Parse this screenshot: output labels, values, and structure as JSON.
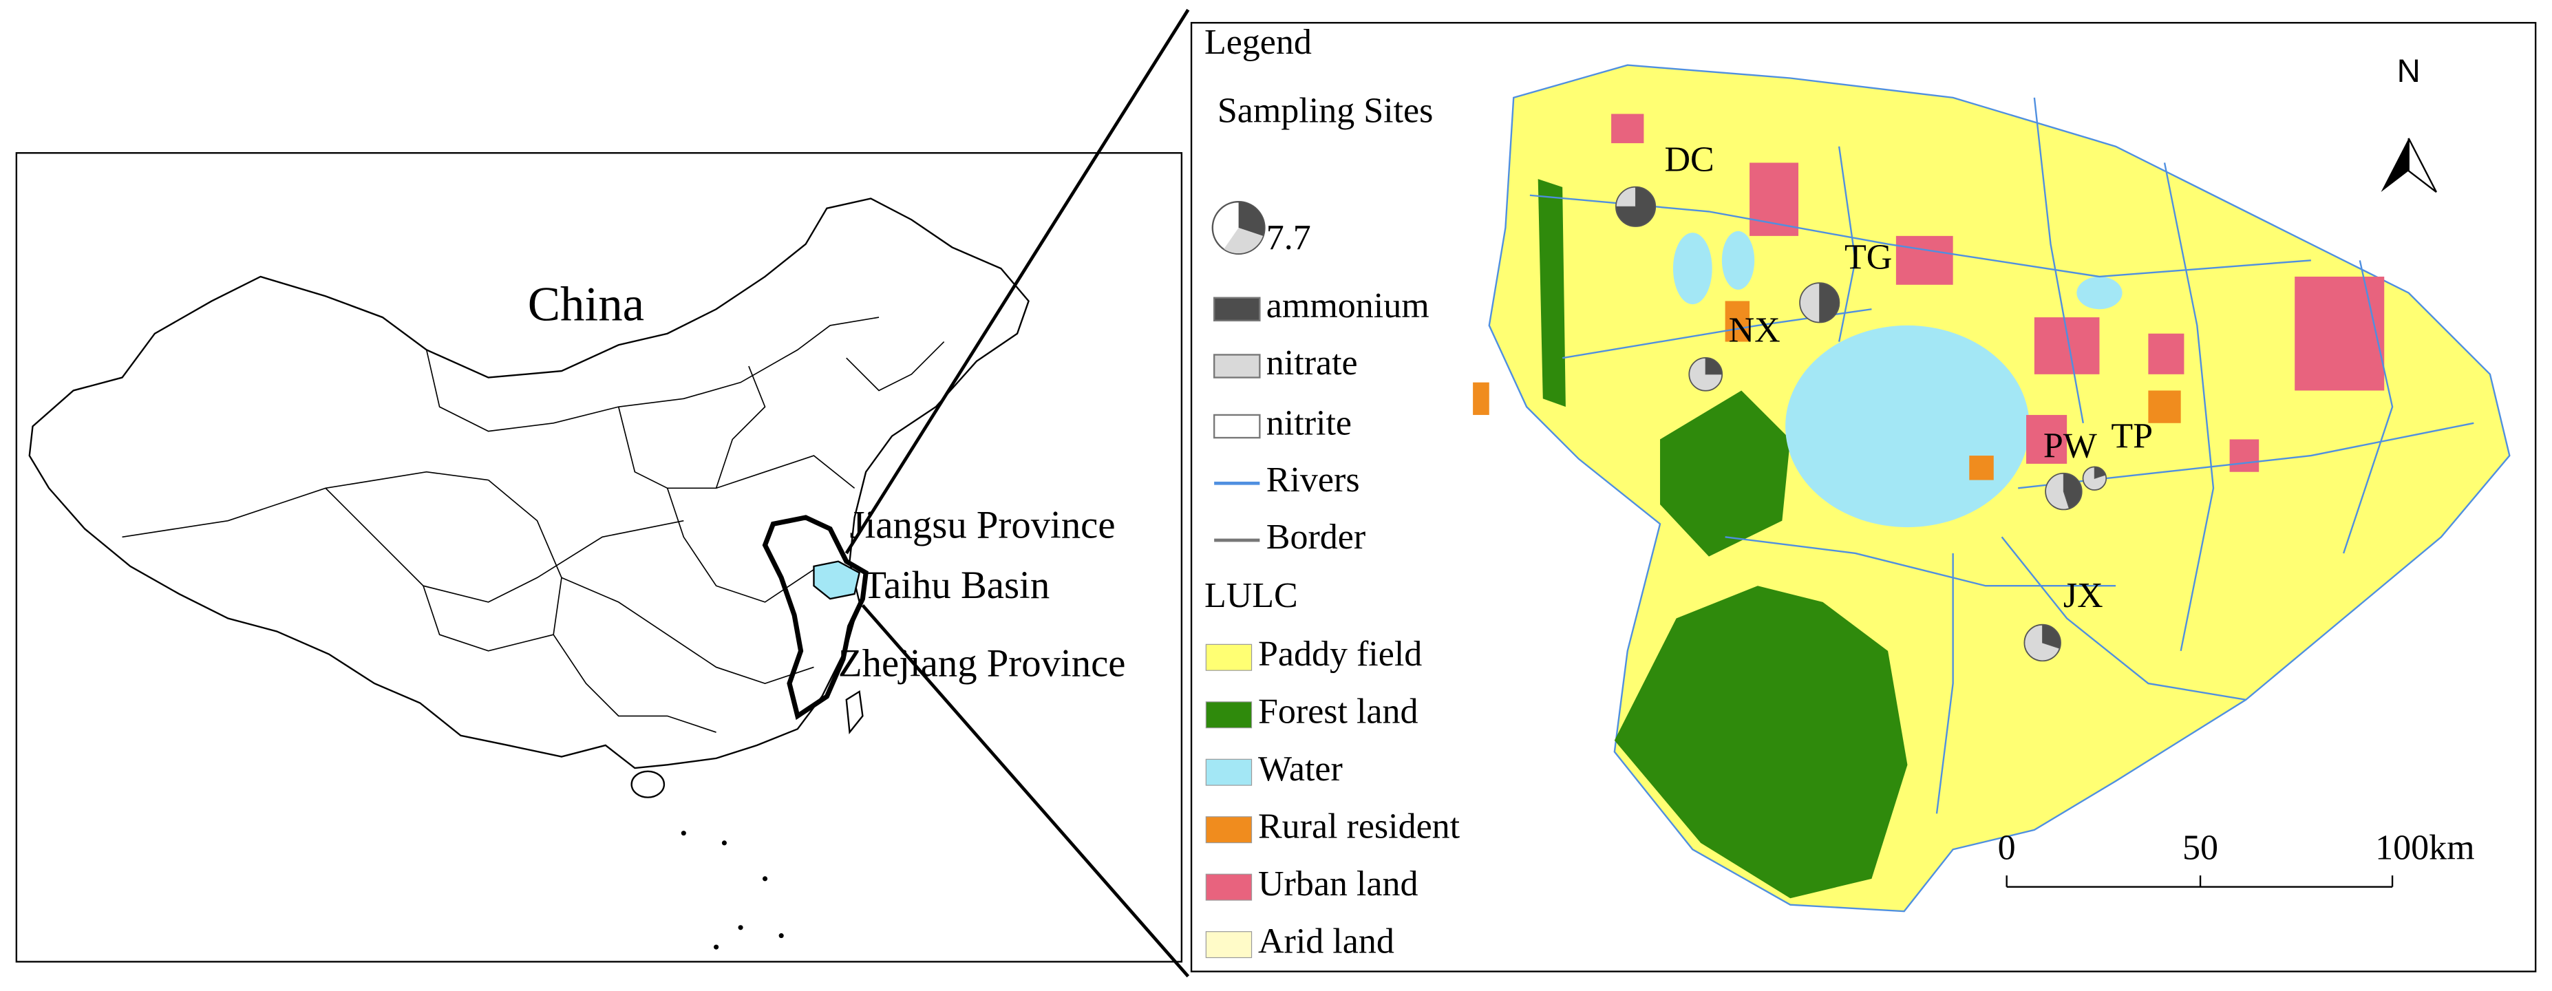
{
  "left_panel": {
    "title": "China",
    "labels": [
      "Jiangsu Province",
      "Taihu Basin",
      "Zhejiang Province"
    ]
  },
  "legend": {
    "title": "Legend",
    "sampling_title": "Sampling Sites",
    "size_label": "7.7",
    "components": [
      {
        "label": "ammonium",
        "color": "#4d4d4d"
      },
      {
        "label": "nitrate",
        "color": "#d9d9d9"
      },
      {
        "label": "nitrite",
        "color": "#ffffff"
      }
    ],
    "lines": [
      {
        "label": "Rivers",
        "color": "#4f8fe0"
      },
      {
        "label": "Border",
        "color": "#777777"
      }
    ],
    "lulc_title": "LULC",
    "lulc": [
      {
        "label": "Paddy field",
        "color": "#ffff73"
      },
      {
        "label": "Forest land",
        "color": "#2f8a0c"
      },
      {
        "label": "Water",
        "color": "#a3e7f5"
      },
      {
        "label": "Rural resident",
        "color": "#f08c1e"
      },
      {
        "label": "Urban land",
        "color": "#e8637e"
      },
      {
        "label": "Arid land",
        "color": "#fffbc8"
      }
    ]
  },
  "map": {
    "north": "N",
    "sites": [
      {
        "label": "DC",
        "ammonium": 75,
        "nitrate": 25,
        "nitrite": 0
      },
      {
        "label": "TG",
        "ammonium": 50,
        "nitrate": 50,
        "nitrite": 0
      },
      {
        "label": "NX",
        "ammonium": 25,
        "nitrate": 75,
        "nitrite": 0
      },
      {
        "label": "PW",
        "ammonium": 45,
        "nitrate": 55,
        "nitrite": 0
      },
      {
        "label": "TP",
        "ammonium": 20,
        "nitrate": 80,
        "nitrite": 0
      },
      {
        "label": "JX",
        "ammonium": 30,
        "nitrate": 70,
        "nitrite": 0
      }
    ],
    "scale_labels": [
      "0",
      "50",
      "100km"
    ]
  }
}
